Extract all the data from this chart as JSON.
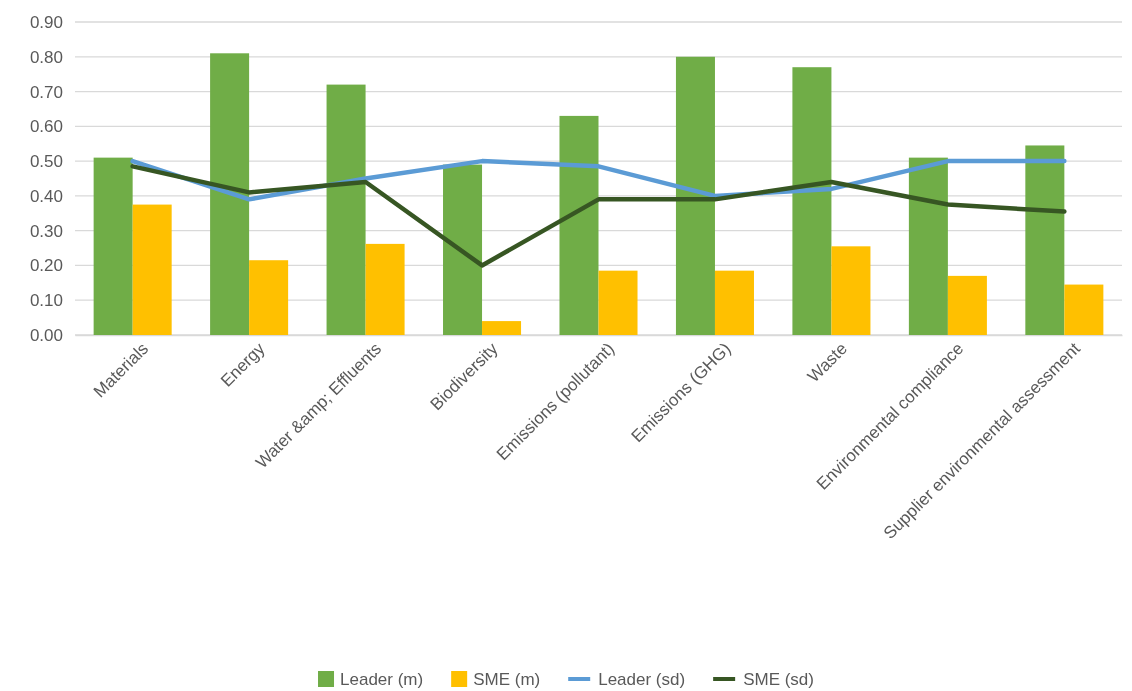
{
  "chart_data": {
    "type": "bar",
    "categories": [
      "Materials",
      "Energy",
      "Water &amp; Effluents",
      "Biodiversity",
      "Emissions (pollutant)",
      "Emissions (GHG)",
      "Waste",
      "Environmental compliance",
      "Supplier environmental assessment"
    ],
    "series": [
      {
        "name": "Leader (m)",
        "color": "#70ad47",
        "values": [
          0.51,
          0.81,
          0.72,
          0.49,
          0.63,
          0.8,
          0.77,
          0.51,
          0.545
        ]
      },
      {
        "name": "SME (m)",
        "color": "#ffc000",
        "values": [
          0.375,
          0.215,
          0.262,
          0.04,
          0.185,
          0.185,
          0.255,
          0.17,
          0.145
        ]
      },
      {
        "name": "Leader (sd)",
        "type": "line",
        "color": "#5b9bd5",
        "values": [
          0.5,
          0.39,
          0.45,
          0.5,
          0.485,
          0.4,
          0.42,
          0.5,
          0.5
        ]
      },
      {
        "name": "SME (sd)",
        "type": "line",
        "color": "#375623",
        "values": [
          0.485,
          0.41,
          0.44,
          0.2,
          0.39,
          0.39,
          0.44,
          0.375,
          0.355
        ]
      }
    ],
    "ylim": [
      0,
      0.9
    ],
    "yticks": [
      {
        "value": 0,
        "label": "0.00"
      },
      {
        "value": 0.1,
        "label": "0.10"
      },
      {
        "value": 0.2,
        "label": "0.20"
      },
      {
        "value": 0.3,
        "label": "0.30"
      },
      {
        "value": 0.4,
        "label": "0.40"
      },
      {
        "value": 0.5,
        "label": "0.50"
      },
      {
        "value": 0.6,
        "label": "0.60"
      },
      {
        "value": 0.7,
        "label": "0.70"
      },
      {
        "value": 0.8,
        "label": "0.80"
      },
      {
        "value": 0.9,
        "label": "0.90"
      }
    ],
    "grid": "y",
    "legend": "bottom",
    "marker": "none",
    "line_style": "solid"
  }
}
